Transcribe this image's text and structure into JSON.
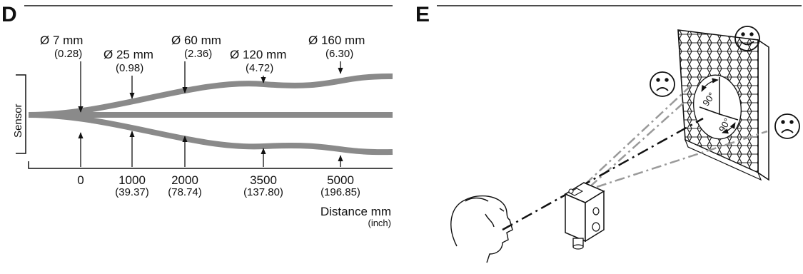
{
  "panel_d": {
    "letter": "D",
    "sensor_label": "Sensor",
    "diameters": [
      {
        "mm": "Ø 7 mm",
        "inch": "(0.28)"
      },
      {
        "mm": "Ø 25 mm",
        "inch": "(0.98)"
      },
      {
        "mm": "Ø 60 mm",
        "inch": "(2.36)"
      },
      {
        "mm": "Ø 120 mm",
        "inch": "(4.72)"
      },
      {
        "mm": "Ø 160 mm",
        "inch": "(6.30)"
      }
    ],
    "distances": [
      {
        "mm": "0",
        "inch": ""
      },
      {
        "mm": "1000",
        "inch": "(39.37)"
      },
      {
        "mm": "2000",
        "inch": "(78.74)"
      },
      {
        "mm": "3500",
        "inch": "(137.80)"
      },
      {
        "mm": "5000",
        "inch": "(196.85)"
      }
    ],
    "axis_label": "Distance  mm",
    "axis_unit": "(inch)"
  },
  "panel_e": {
    "letter": "E",
    "angle_1": "90°",
    "angle_2": "90°",
    "colors": {
      "beam_gray": "#9a9a9a",
      "ink": "#111111",
      "band": "#8a8a8a"
    },
    "icons": [
      "smiley-face-icon",
      "sad-face-icon",
      "sad-face-icon"
    ]
  }
}
